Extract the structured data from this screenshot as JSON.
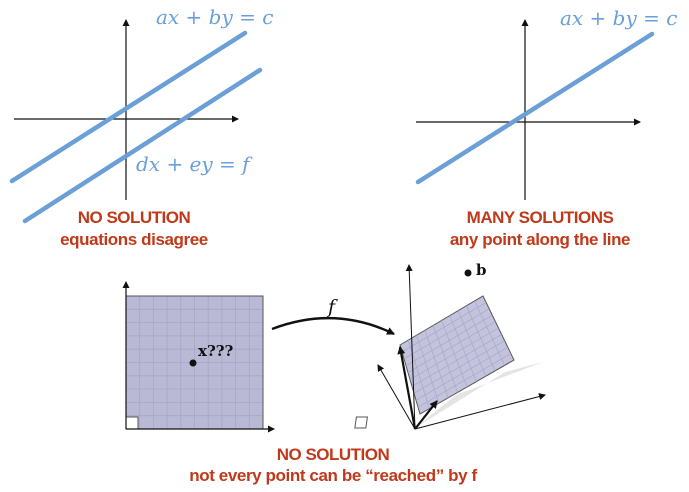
{
  "colors": {
    "line": "#6a9fd8",
    "caption": "#c0391b",
    "axis": "#111111",
    "grid_fill": "#b9b9d6",
    "grid_line": "#9e9ebf"
  },
  "panel_left": {
    "eq_top": "ax + by = c",
    "eq_bottom": "dx + ey = f",
    "title": "NO SOLUTION",
    "subtitle": "equations disagree"
  },
  "panel_right": {
    "eq_top": "ax + by = c",
    "title": "MANY SOLUTIONS",
    "subtitle": "any point along the line"
  },
  "panel_bottom": {
    "map_label": "f",
    "point_x_label": "x???",
    "point_b_label": "b",
    "title": "NO SOLUTION",
    "subtitle": "not every point can be “reached” by f"
  }
}
